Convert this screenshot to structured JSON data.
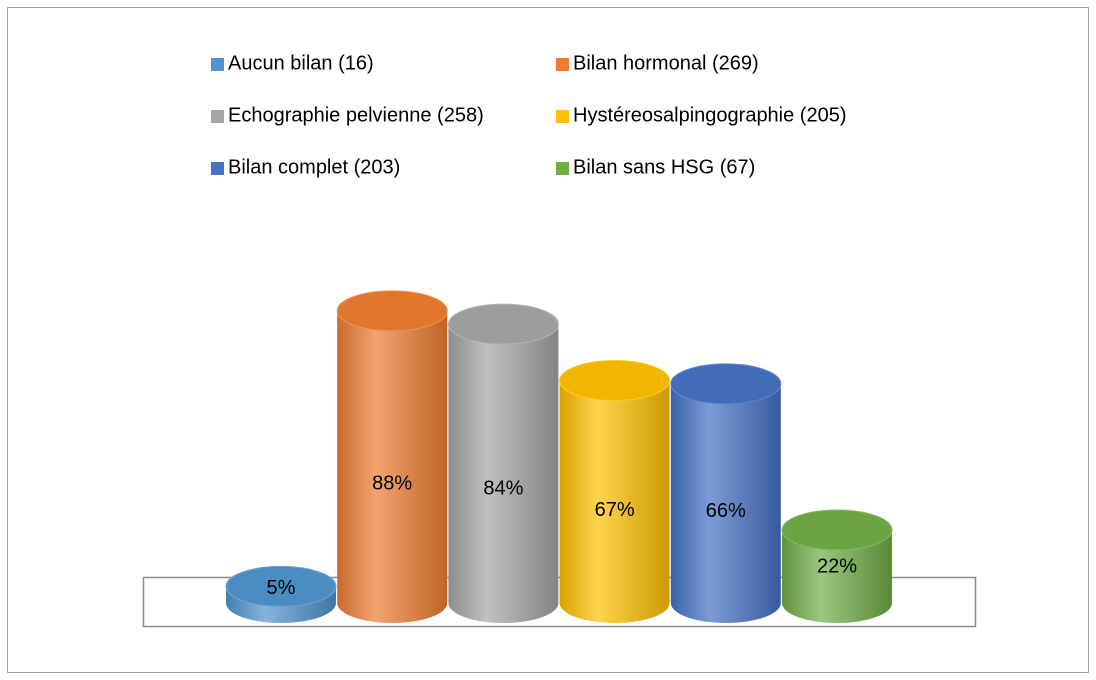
{
  "chart_data": {
    "type": "bar",
    "categories": [
      "Aucun bilan (16)",
      "Bilan hormonal (269)",
      "Echographie pelvienne (258)",
      "Hystéreosalpingographie (205)",
      "Bilan complet (203)",
      "Bilan sans HSG (67)"
    ],
    "values": [
      5,
      88,
      84,
      67,
      66,
      22
    ],
    "value_labels": [
      "5%",
      "88%",
      "84%",
      "67%",
      "66%",
      "22%"
    ],
    "colors": [
      "#4f94cd",
      "#ed7d31",
      "#a5a5a5",
      "#ffc000",
      "#4472c4",
      "#70ad47"
    ]
  }
}
